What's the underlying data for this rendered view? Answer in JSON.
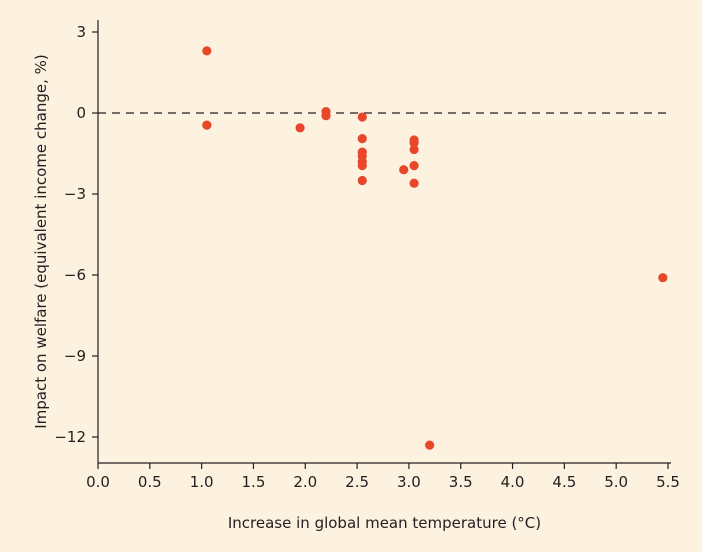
{
  "chart_data": {
    "type": "scatter",
    "title": "",
    "xlabel": "Increase in global mean temperature (°C)",
    "ylabel": "Impact on welfare (equivalent income change, %)",
    "xlim": [
      0.0,
      5.5
    ],
    "ylim": [
      -13,
      3
    ],
    "xticks": [
      "0.0",
      "0.5",
      "1.0",
      "1.5",
      "2.0",
      "2.5",
      "3.0",
      "3.5",
      "4.0",
      "4.5",
      "5.0",
      "5.5"
    ],
    "yticks": [
      "3",
      "0",
      "−3",
      "−6",
      "−9",
      "−12"
    ],
    "reference_line": {
      "y": 0,
      "style": "dashed"
    },
    "grid": false,
    "legend": "none",
    "colors": {
      "background": "#fdf1df",
      "point": "#e8472a",
      "axis": "#231f20"
    },
    "series": [
      {
        "points": [
          {
            "x": 1.05,
            "y": 2.3
          },
          {
            "x": 1.05,
            "y": -0.45
          },
          {
            "x": 1.95,
            "y": -0.55
          },
          {
            "x": 2.2,
            "y": 0.05
          },
          {
            "x": 2.2,
            "y": -0.1
          },
          {
            "x": 2.55,
            "y": -0.15
          },
          {
            "x": 2.55,
            "y": -0.95
          },
          {
            "x": 2.55,
            "y": -1.45
          },
          {
            "x": 2.55,
            "y": -1.6
          },
          {
            "x": 2.55,
            "y": -1.8
          },
          {
            "x": 2.55,
            "y": -1.95
          },
          {
            "x": 2.55,
            "y": -2.5
          },
          {
            "x": 2.95,
            "y": -2.1
          },
          {
            "x": 3.05,
            "y": -1.0
          },
          {
            "x": 3.05,
            "y": -1.1
          },
          {
            "x": 3.05,
            "y": -1.35
          },
          {
            "x": 3.05,
            "y": -1.95
          },
          {
            "x": 3.05,
            "y": -2.6
          },
          {
            "x": 3.2,
            "y": -12.3
          },
          {
            "x": 5.45,
            "y": -6.1
          }
        ]
      }
    ]
  }
}
